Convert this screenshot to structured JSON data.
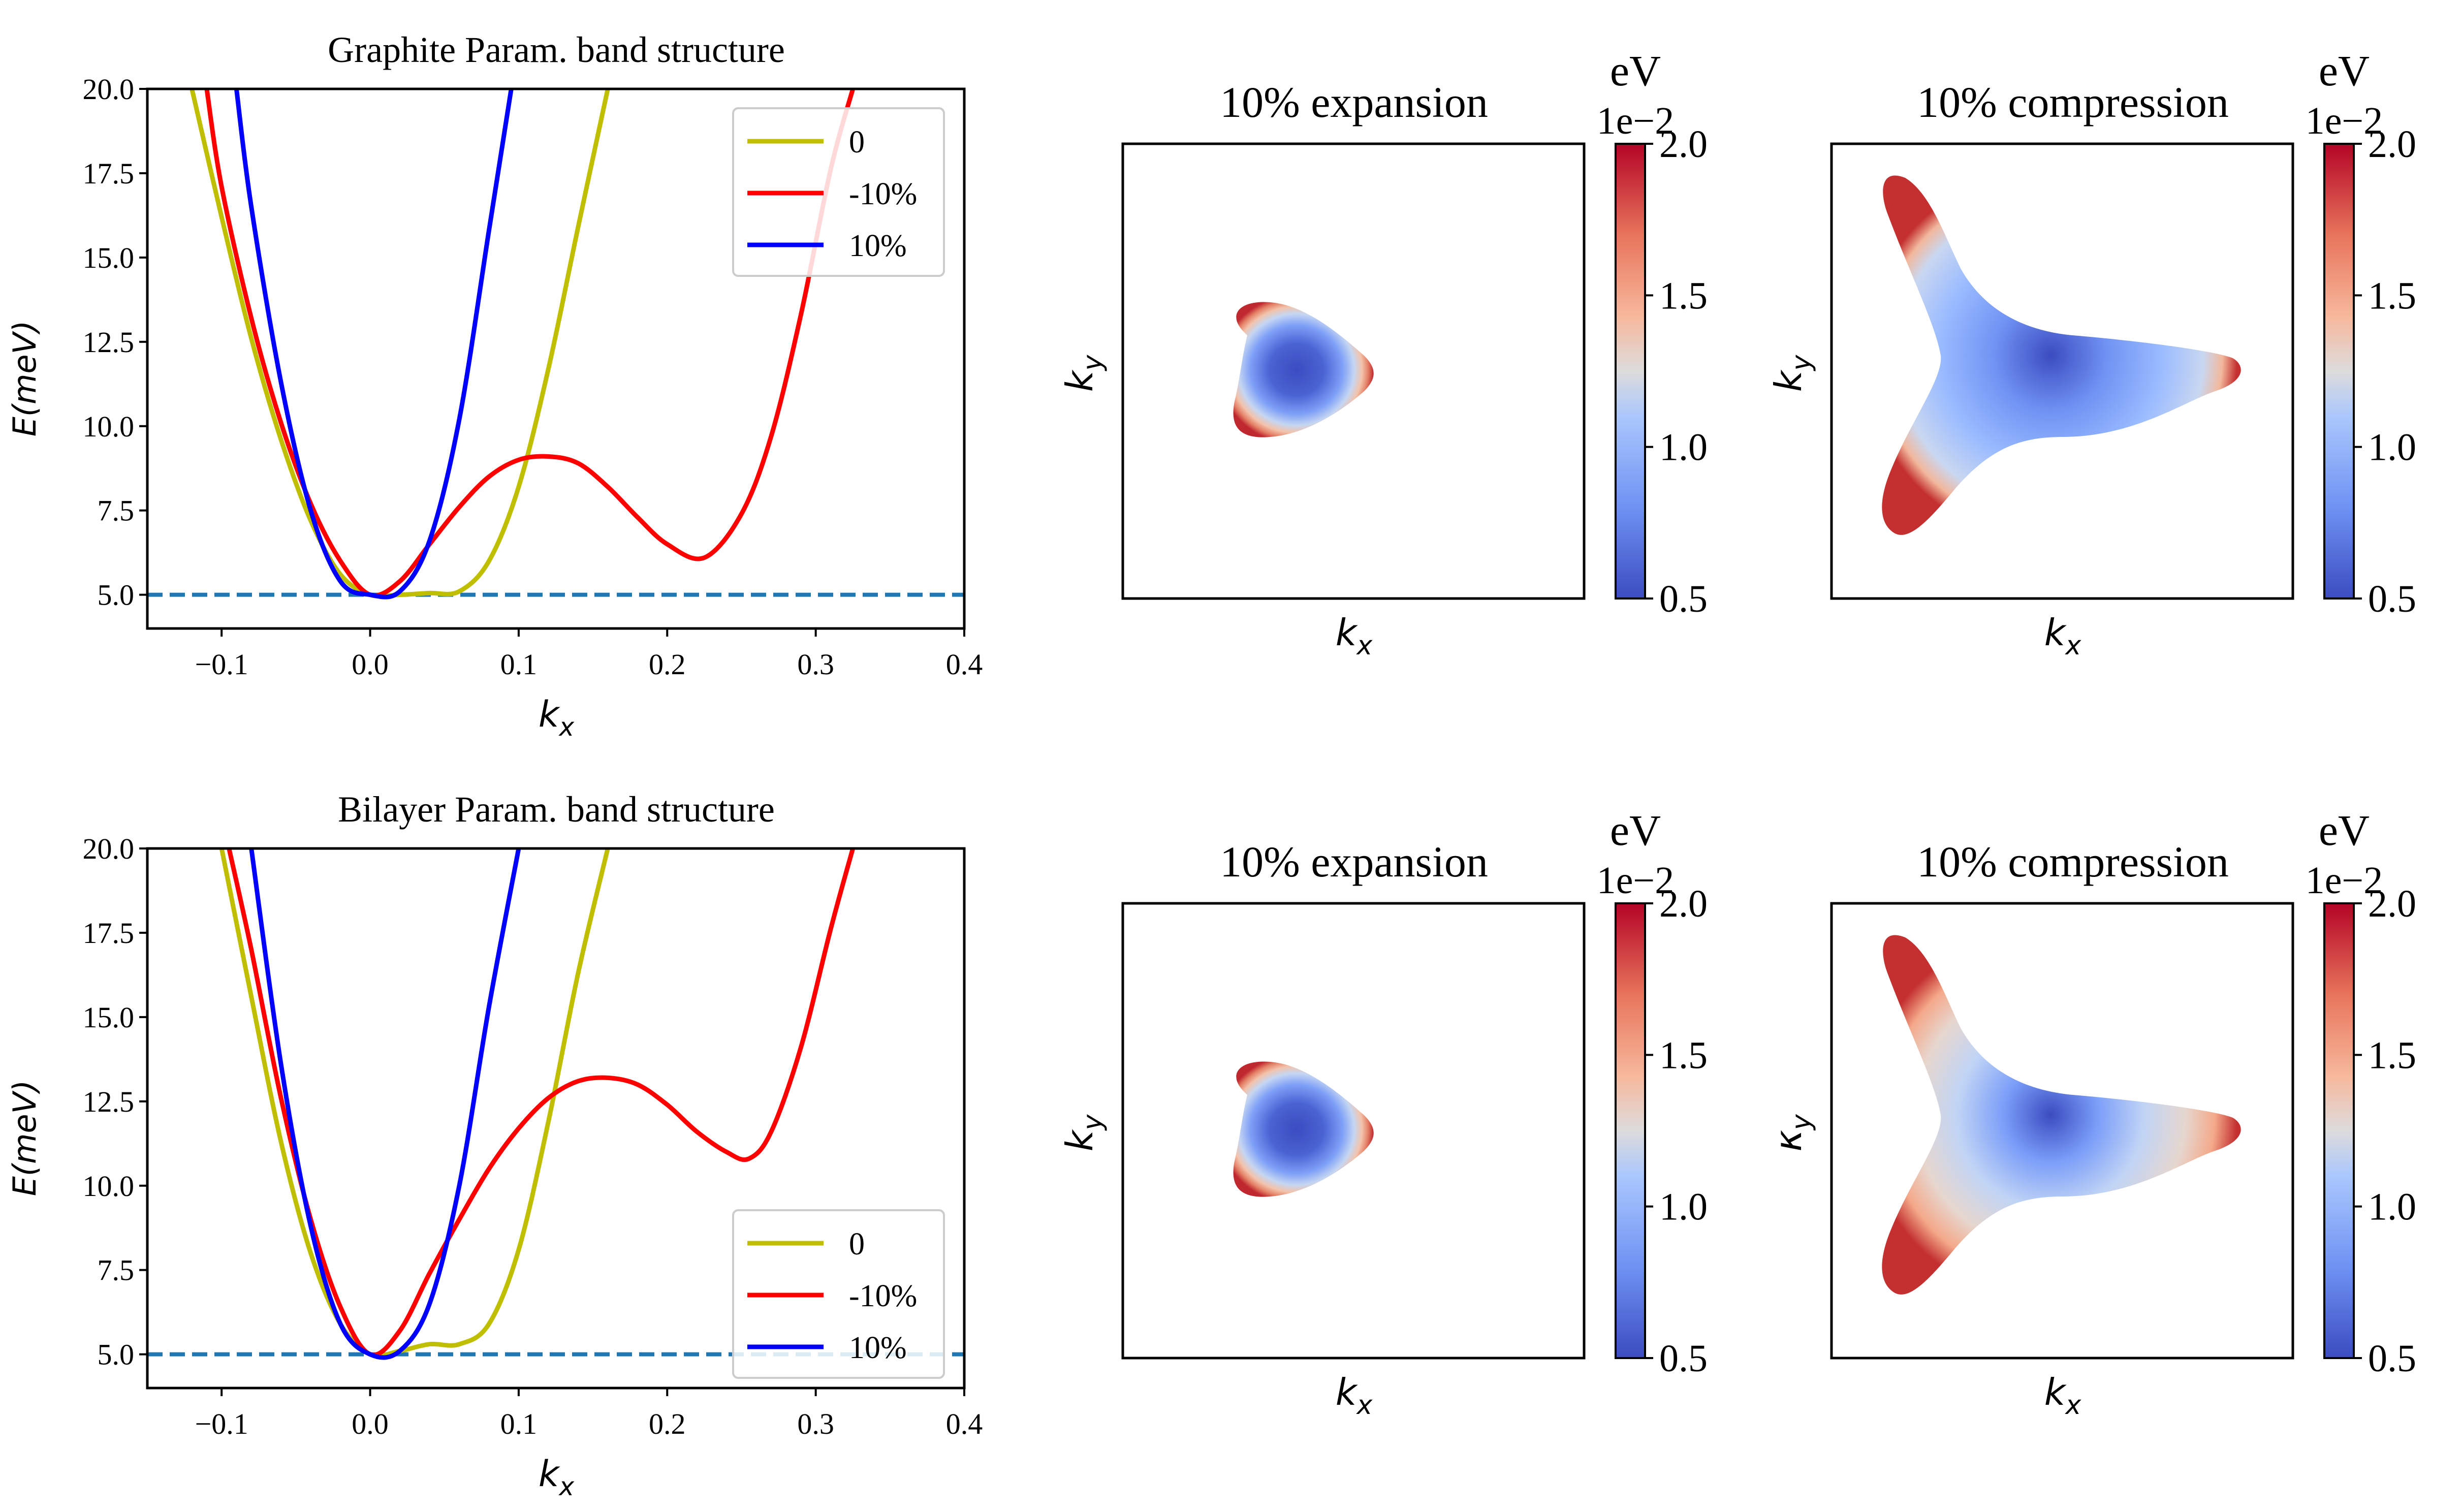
{
  "chart_data": [
    {
      "type": "line",
      "title": "Graphite Param. band structure",
      "xlabel": "k_x",
      "ylabel": "E(meV)",
      "xlim": [
        -0.15,
        0.4
      ],
      "ylim": [
        4.0,
        20.0
      ],
      "xticks": [
        "−0.1",
        "0.0",
        "0.1",
        "0.2",
        "0.3",
        "0.4"
      ],
      "yticks": [
        "5.0",
        "7.5",
        "10.0",
        "12.5",
        "15.0",
        "17.5",
        "20.0"
      ],
      "legend_position": "top-right",
      "hline": {
        "y": 5.0,
        "style": "dashed",
        "color": "#1f77b4"
      },
      "series": [
        {
          "name": "0",
          "color": "#bfbf00",
          "x": [
            -0.12,
            -0.1,
            -0.08,
            -0.06,
            -0.04,
            -0.02,
            0.0,
            0.02,
            0.04,
            0.06,
            0.08,
            0.1,
            0.12,
            0.14,
            0.16
          ],
          "y": [
            20.0,
            16.2,
            12.6,
            9.6,
            7.2,
            5.6,
            5.0,
            5.0,
            5.05,
            5.1,
            6.0,
            8.2,
            11.7,
            15.9,
            20.0
          ]
        },
        {
          "name": "-10%",
          "color": "#ff0000",
          "x": [
            -0.11,
            -0.1,
            -0.08,
            -0.06,
            -0.04,
            -0.02,
            0.0,
            0.02,
            0.04,
            0.06,
            0.08,
            0.1,
            0.12,
            0.14,
            0.16,
            0.18,
            0.2,
            0.225,
            0.25,
            0.27,
            0.29,
            0.31,
            0.325
          ],
          "y": [
            20.0,
            17.1,
            13.2,
            10.1,
            7.7,
            6.0,
            5.0,
            5.4,
            6.5,
            7.6,
            8.5,
            9.0,
            9.1,
            8.9,
            8.2,
            7.3,
            6.5,
            6.1,
            7.4,
            9.7,
            13.3,
            17.6,
            20.0
          ],
          "label_on_plot": "-10%"
        },
        {
          "name": "10%",
          "color": "#0000ff",
          "x": [
            -0.09,
            -0.08,
            -0.06,
            -0.04,
            -0.02,
            0.0,
            0.02,
            0.04,
            0.06,
            0.08,
            0.095
          ],
          "y": [
            20.0,
            16.5,
            11.3,
            7.5,
            5.4,
            5.0,
            5.1,
            6.6,
            10.2,
            15.8,
            20.0
          ]
        }
      ]
    },
    {
      "type": "heatmap",
      "title": "10% expansion",
      "xlabel": "k_x",
      "ylabel": "k_y",
      "colorbar": {
        "label": "eV",
        "offset": "1e−2",
        "range": [
          0.5,
          2.0
        ],
        "ticks": [
          "0.5",
          "1.0",
          "1.5",
          "2.0"
        ],
        "colormap": "coolwarm"
      },
      "shape": "small rounded triangle, minimum 0.5 at center, 2.0 at rim"
    },
    {
      "type": "heatmap",
      "title": "10% compression",
      "xlabel": "k_x",
      "ylabel": "k_y",
      "colorbar": {
        "label": "eV",
        "offset": "1e−2",
        "range": [
          0.5,
          2.0
        ],
        "ticks": [
          "0.5",
          "1.0",
          "1.5",
          "2.0"
        ],
        "colormap": "coolwarm"
      },
      "shape": "three-armed trigonal pocket, minimum at center and near arm tips"
    },
    {
      "type": "line",
      "title": "Bilayer Param. band structure",
      "xlabel": "k_x",
      "ylabel": "E(meV)",
      "xlim": [
        -0.15,
        0.4
      ],
      "ylim": [
        4.0,
        20.0
      ],
      "xticks": [
        "−0.1",
        "0.0",
        "0.1",
        "0.2",
        "0.3",
        "0.4"
      ],
      "yticks": [
        "5.0",
        "7.5",
        "10.0",
        "12.5",
        "15.0",
        "17.5",
        "20.0"
      ],
      "legend_position": "lower-right",
      "hline": {
        "y": 5.0,
        "style": "dashed",
        "color": "#1f77b4"
      },
      "series": [
        {
          "name": "0",
          "color": "#bfbf00",
          "x": [
            -0.1,
            -0.08,
            -0.06,
            -0.04,
            -0.02,
            0.0,
            0.02,
            0.04,
            0.06,
            0.08,
            0.1,
            0.12,
            0.14,
            0.16
          ],
          "y": [
            20.0,
            15.6,
            11.3,
            8.0,
            5.9,
            5.0,
            5.1,
            5.3,
            5.3,
            5.9,
            8.1,
            11.9,
            16.3,
            20.0
          ]
        },
        {
          "name": "-10%",
          "color": "#ff0000",
          "x": [
            -0.095,
            -0.08,
            -0.06,
            -0.04,
            -0.02,
            0.0,
            0.02,
            0.04,
            0.06,
            0.08,
            0.1,
            0.12,
            0.14,
            0.16,
            0.18,
            0.2,
            0.22,
            0.24,
            0.255,
            0.27,
            0.29,
            0.31,
            0.325
          ],
          "y": [
            20.0,
            17.0,
            12.6,
            9.0,
            6.4,
            5.0,
            5.7,
            7.4,
            9.0,
            10.5,
            11.7,
            12.6,
            13.1,
            13.2,
            13.0,
            12.4,
            11.6,
            11.0,
            10.8,
            11.6,
            14.1,
            17.6,
            20.0
          ]
        },
        {
          "name": "10%",
          "color": "#0000ff",
          "x": [
            -0.08,
            -0.06,
            -0.04,
            -0.02,
            0.0,
            0.02,
            0.04,
            0.06,
            0.08,
            0.1
          ],
          "y": [
            20.0,
            13.6,
            8.8,
            5.9,
            5.0,
            5.1,
            6.5,
            10.0,
            15.3,
            20.0
          ]
        }
      ]
    },
    {
      "type": "heatmap",
      "title": "10% expansion",
      "xlabel": "k_x",
      "ylabel": "k_y",
      "colorbar": {
        "label": "eV",
        "offset": "1e−2",
        "range": [
          0.5,
          2.0
        ],
        "ticks": [
          "0.5",
          "1.0",
          "1.5",
          "2.0"
        ],
        "colormap": "coolwarm"
      },
      "shape": "small rounded triangle, minimum 0.5 at center, 2.0 at rim"
    },
    {
      "type": "heatmap",
      "title": "10% compression",
      "xlabel": "k_x",
      "ylabel": "k_y",
      "colorbar": {
        "label": "eV",
        "offset": "1e−2",
        "range": [
          0.5,
          2.0
        ],
        "ticks": [
          "0.5",
          "1.0",
          "1.5",
          "2.0"
        ],
        "colormap": "coolwarm"
      },
      "shape": "three-armed trigonal pocket, minimum at center, lighter shading in arms"
    }
  ]
}
